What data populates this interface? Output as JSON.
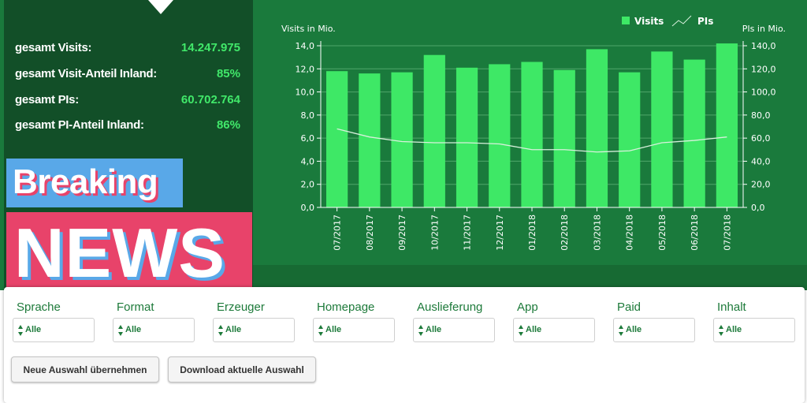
{
  "stats": [
    {
      "label": "gesamt Visits:",
      "value": "14.247.975"
    },
    {
      "label": "gesamt Visit-Anteil Inland:",
      "value": "85%"
    },
    {
      "label": "gesamt PIs:",
      "value": "60.702.764"
    },
    {
      "label": "gesamt PI-Anteil Inland:",
      "value": "86%"
    }
  ],
  "banner": {
    "breaking": "Breaking",
    "news": "NEWS"
  },
  "chart_data": {
    "type": "bar",
    "categories": [
      "07/2017",
      "08/2017",
      "09/2017",
      "10/2017",
      "11/2017",
      "12/2017",
      "01/2018",
      "02/2018",
      "03/2018",
      "04/2018",
      "05/2018",
      "06/2018",
      "07/2018"
    ],
    "series": [
      {
        "name": "Visits",
        "type": "bar",
        "axis": "left",
        "values": [
          11.8,
          11.6,
          11.7,
          13.2,
          12.1,
          12.4,
          12.6,
          11.9,
          13.7,
          11.7,
          13.5,
          12.8,
          14.2
        ]
      },
      {
        "name": "PIs",
        "type": "line",
        "axis": "right",
        "values": [
          68,
          61,
          57,
          56,
          56,
          55,
          50,
          50,
          48,
          49,
          56,
          58,
          61
        ]
      }
    ],
    "ylabel_left": "Visits in Mio.",
    "ylabel_right": "PIs in Mio.",
    "ylim_left": [
      0,
      14
    ],
    "ylim_right": [
      0,
      140
    ],
    "yticks_left": [
      "0,0",
      "2,0",
      "4,0",
      "6,0",
      "8,0",
      "10,0",
      "12,0",
      "14,0"
    ],
    "yticks_right": [
      "0,0",
      "20,0",
      "40,0",
      "60,0",
      "80,0",
      "100,0",
      "120,0",
      "140,0"
    ],
    "legend_position": "top-right",
    "grid": true
  },
  "filters": [
    {
      "label": "Sprache",
      "value": "Alle"
    },
    {
      "label": "Format",
      "value": "Alle"
    },
    {
      "label": "Erzeuger",
      "value": "Alle"
    },
    {
      "label": "Homepage",
      "value": "Alle"
    },
    {
      "label": "Auslieferung",
      "value": "Alle"
    },
    {
      "label": "App",
      "value": "Alle"
    },
    {
      "label": "Paid",
      "value": "Alle"
    },
    {
      "label": "Inhalt",
      "value": "Alle"
    }
  ],
  "buttons": {
    "apply": "Neue Auswahl übernehmen",
    "download": "Download aktuelle Auswahl"
  },
  "colors": {
    "bar": "#3ee866",
    "line": "#d8f0dc",
    "accent_text": "#41e86a",
    "banner_blue": "#59a8e8",
    "banner_pink": "#e8436a"
  }
}
